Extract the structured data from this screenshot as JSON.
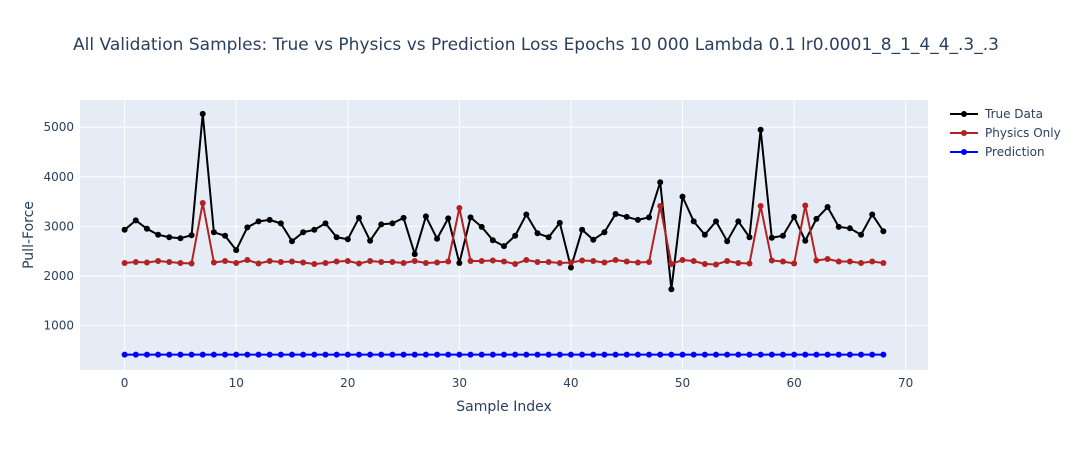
{
  "chart_data": {
    "type": "line",
    "title": "All Validation Samples: True vs Physics vs Prediction Loss Epochs 10 000 Lambda 0.1 lr0.0001_8_1_4_4_.3_.3",
    "xlabel": "Sample Index",
    "ylabel": "Pull-Force",
    "xlim": [
      -4,
      72
    ],
    "ylim": [
      100,
      5550
    ],
    "xticks": [
      0,
      10,
      20,
      30,
      40,
      50,
      60,
      70
    ],
    "yticks": [
      1000,
      2000,
      3000,
      4000,
      5000
    ],
    "grid": true,
    "legend_position": "top-right",
    "series": [
      {
        "name": "True Data",
        "color": "#000000",
        "values": [
          2930,
          3120,
          2950,
          2830,
          2780,
          2760,
          2820,
          5270,
          2880,
          2810,
          2520,
          2980,
          3100,
          3130,
          3060,
          2700,
          2880,
          2930,
          3060,
          2780,
          2740,
          3170,
          2710,
          3040,
          3060,
          3170,
          2440,
          3200,
          2750,
          3160,
          2260,
          3180,
          2990,
          2720,
          2600,
          2810,
          3240,
          2860,
          2780,
          3070,
          2170,
          2930,
          2730,
          2880,
          3250,
          3190,
          3130,
          3180,
          3890,
          1730,
          3600,
          3100,
          2830,
          3100,
          2700,
          3100,
          2780,
          4950,
          2770,
          2810,
          3190,
          2710,
          3150,
          3390,
          2990,
          2960,
          2830,
          3240,
          2900
        ]
      },
      {
        "name": "Physics Only",
        "color": "#b22222",
        "values": [
          2260,
          2280,
          2270,
          2300,
          2280,
          2260,
          2250,
          3470,
          2270,
          2300,
          2260,
          2320,
          2250,
          2300,
          2280,
          2290,
          2270,
          2240,
          2260,
          2290,
          2300,
          2250,
          2300,
          2280,
          2280,
          2260,
          2300,
          2260,
          2270,
          2290,
          3370,
          2300,
          2300,
          2310,
          2290,
          2240,
          2320,
          2280,
          2280,
          2260,
          2270,
          2310,
          2300,
          2270,
          2320,
          2290,
          2270,
          2280,
          3410,
          2240,
          2320,
          2300,
          2240,
          2230,
          2300,
          2260,
          2250,
          3410,
          2310,
          2290,
          2250,
          3420,
          2310,
          2340,
          2290,
          2290,
          2260,
          2290,
          2260
        ]
      },
      {
        "name": "Prediction",
        "color": "#0000ff",
        "values": [
          410,
          410,
          410,
          410,
          410,
          410,
          410,
          410,
          410,
          410,
          410,
          410,
          410,
          410,
          410,
          410,
          410,
          410,
          410,
          410,
          410,
          410,
          410,
          410,
          410,
          410,
          410,
          410,
          410,
          410,
          410,
          410,
          410,
          410,
          410,
          410,
          410,
          410,
          410,
          410,
          410,
          410,
          410,
          410,
          410,
          410,
          410,
          410,
          410,
          410,
          410,
          410,
          410,
          410,
          410,
          410,
          410,
          410,
          410,
          410,
          410,
          410,
          410,
          410,
          410,
          410,
          410,
          410,
          410
        ]
      }
    ]
  }
}
